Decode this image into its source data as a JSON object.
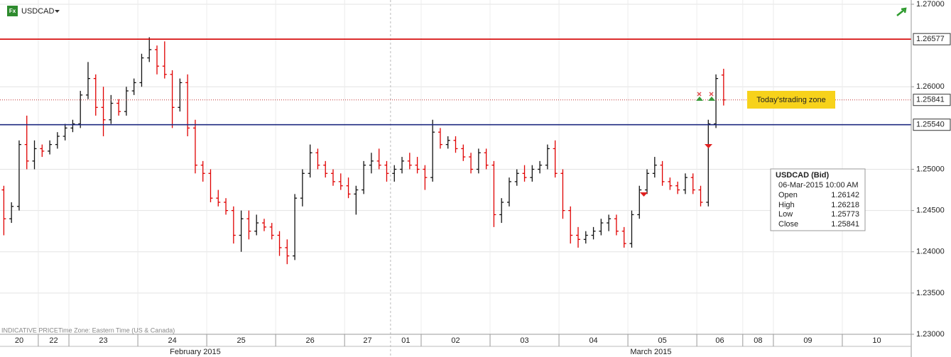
{
  "symbol": "USDCAD",
  "icon": "Fx",
  "chart_data": {
    "type": "ohlc",
    "categories": [
      "20",
      "20",
      "20",
      "20",
      "20",
      "22",
      "22",
      "22",
      "22",
      "23",
      "23",
      "23",
      "23",
      "23",
      "23",
      "23",
      "23",
      "23",
      "24",
      "24",
      "24",
      "24",
      "24",
      "24",
      "24",
      "24",
      "24",
      "25",
      "25",
      "25",
      "25",
      "25",
      "25",
      "25",
      "25",
      "25",
      "26",
      "26",
      "26",
      "26",
      "26",
      "26",
      "26",
      "26",
      "26",
      "27",
      "27",
      "27",
      "27",
      "27",
      "27",
      "01",
      "01",
      "01",
      "01",
      "02",
      "02",
      "02",
      "02",
      "02",
      "02",
      "02",
      "02",
      "02",
      "03",
      "03",
      "03",
      "03",
      "03",
      "03",
      "03",
      "03",
      "03",
      "04",
      "04",
      "04",
      "04",
      "04",
      "04",
      "04",
      "04",
      "04",
      "05",
      "05",
      "05",
      "05",
      "05",
      "05",
      "05",
      "05",
      "05",
      "06",
      "06",
      "06",
      "06",
      "06",
      "06",
      "08",
      "08",
      "08",
      "08",
      "09",
      "09",
      "09",
      "09",
      "09",
      "09",
      "09",
      "09",
      "09",
      "10",
      "10",
      "10",
      "10",
      "10",
      "10",
      "10",
      "10",
      "10"
    ],
    "months": [
      "February 2015",
      "March 2015"
    ],
    "open": [
      1.2475,
      1.244,
      1.2455,
      1.253,
      1.251,
      1.2525,
      1.2522,
      1.253,
      1.254,
      1.255,
      1.2555,
      1.259,
      1.261,
      1.2575,
      1.256,
      1.258,
      1.257,
      1.2595,
      1.2605,
      1.2635,
      1.2645,
      1.2625,
      1.2615,
      1.2575,
      1.2605,
      1.255,
      1.2505,
      1.2495,
      1.2465,
      1.246,
      1.245,
      1.242,
      1.244,
      1.2425,
      1.2435,
      1.243,
      1.242,
      1.2405,
      1.2395,
      1.2465,
      1.2495,
      1.252,
      1.2505,
      1.2495,
      1.2485,
      1.248,
      1.247,
      1.2475,
      1.2505,
      1.251,
      1.2505,
      1.2495,
      1.25,
      1.251,
      1.2505,
      1.25,
      1.249,
      1.2545,
      1.253,
      1.2535,
      1.2525,
      1.2515,
      1.25,
      1.252,
      1.2505,
      1.2445,
      1.246,
      1.2485,
      1.2495,
      1.249,
      1.25,
      1.2505,
      1.2525,
      1.2495,
      1.245,
      1.242,
      1.2415,
      1.242,
      1.2425,
      1.2435,
      1.244,
      1.2425,
      1.241,
      1.2445,
      1.2475,
      1.2495,
      1.2505,
      1.2485,
      1.248,
      1.2475,
      1.249,
      1.2475,
      1.246,
      1.2555,
      1.26142,
      null,
      null,
      null,
      null,
      null,
      null,
      null,
      null,
      null,
      null,
      null,
      null,
      null,
      null,
      null,
      null,
      null,
      null,
      null,
      null,
      null,
      null,
      null,
      null
    ],
    "high": [
      1.248,
      1.246,
      1.2535,
      1.2565,
      1.2535,
      1.253,
      1.2535,
      1.2545,
      1.2555,
      1.256,
      1.2595,
      1.263,
      1.2615,
      1.26,
      1.259,
      1.2585,
      1.26,
      1.261,
      1.264,
      1.266,
      1.265,
      1.2655,
      1.262,
      1.261,
      1.2615,
      1.256,
      1.251,
      1.25,
      1.2475,
      1.2465,
      1.2455,
      1.245,
      1.245,
      1.2445,
      1.244,
      1.2435,
      1.2425,
      1.2415,
      1.247,
      1.25,
      1.253,
      1.2525,
      1.251,
      1.25,
      1.2495,
      1.249,
      1.248,
      1.251,
      1.252,
      1.2525,
      1.251,
      1.2505,
      1.2515,
      1.252,
      1.2515,
      1.2505,
      1.256,
      1.255,
      1.254,
      1.254,
      1.253,
      1.252,
      1.2525,
      1.2525,
      1.251,
      1.2465,
      1.249,
      1.25,
      1.2505,
      1.2505,
      1.251,
      1.253,
      1.2535,
      1.25,
      1.2455,
      1.243,
      1.2425,
      1.243,
      1.244,
      1.2445,
      1.2445,
      1.243,
      1.245,
      1.248,
      1.25,
      1.2515,
      1.251,
      1.249,
      1.2485,
      1.2495,
      1.2495,
      1.248,
      1.256,
      1.2615,
      1.26218,
      null,
      null,
      null,
      null,
      null,
      null,
      null,
      null,
      null,
      null,
      null,
      null,
      null,
      null,
      null,
      null,
      null,
      null,
      null,
      null,
      null,
      null,
      null,
      null
    ],
    "low": [
      1.242,
      1.2435,
      1.245,
      1.25,
      1.25,
      1.2515,
      1.2518,
      1.2525,
      1.2535,
      1.2545,
      1.255,
      1.2585,
      1.2565,
      1.254,
      1.2555,
      1.2565,
      1.2565,
      1.259,
      1.26,
      1.263,
      1.2615,
      1.261,
      1.255,
      1.257,
      1.254,
      1.2495,
      1.2485,
      1.246,
      1.2455,
      1.2445,
      1.241,
      1.24,
      1.2415,
      1.242,
      1.2425,
      1.2415,
      1.2395,
      1.2385,
      1.239,
      1.2455,
      1.249,
      1.25,
      1.249,
      1.248,
      1.2475,
      1.2465,
      1.2445,
      1.247,
      1.2495,
      1.25,
      1.2485,
      1.2485,
      1.2495,
      1.25,
      1.2495,
      1.2475,
      1.2485,
      1.2525,
      1.2525,
      1.252,
      1.251,
      1.2495,
      1.2495,
      1.25,
      1.243,
      1.2435,
      1.2455,
      1.248,
      1.2485,
      1.2485,
      1.2495,
      1.25,
      1.249,
      1.244,
      1.241,
      1.2405,
      1.241,
      1.2415,
      1.242,
      1.2425,
      1.242,
      1.2405,
      1.2405,
      1.244,
      1.247,
      1.249,
      1.248,
      1.2475,
      1.247,
      1.247,
      1.247,
      1.2455,
      1.2455,
      1.255,
      1.25773,
      null,
      null,
      null,
      null,
      null,
      null,
      null,
      null,
      null,
      null,
      null,
      null,
      null,
      null,
      null,
      null,
      null,
      null,
      null,
      null,
      null,
      null,
      null,
      null
    ],
    "close": [
      1.244,
      1.2455,
      1.253,
      1.251,
      1.2525,
      1.2522,
      1.253,
      1.254,
      1.255,
      1.2555,
      1.259,
      1.261,
      1.2575,
      1.256,
      1.258,
      1.257,
      1.2595,
      1.2605,
      1.2635,
      1.2645,
      1.2625,
      1.2615,
      1.2575,
      1.2605,
      1.255,
      1.2505,
      1.2495,
      1.2465,
      1.246,
      1.245,
      1.242,
      1.244,
      1.2425,
      1.2435,
      1.243,
      1.242,
      1.2405,
      1.2395,
      1.2465,
      1.2495,
      1.252,
      1.2505,
      1.2495,
      1.2485,
      1.248,
      1.247,
      1.2475,
      1.2505,
      1.251,
      1.2505,
      1.2495,
      1.25,
      1.251,
      1.2505,
      1.25,
      1.249,
      1.2545,
      1.253,
      1.2535,
      1.2525,
      1.2515,
      1.25,
      1.252,
      1.2505,
      1.2445,
      1.246,
      1.2485,
      1.2495,
      1.249,
      1.25,
      1.2505,
      1.2525,
      1.2495,
      1.245,
      1.242,
      1.2415,
      1.242,
      1.2425,
      1.2435,
      1.244,
      1.2425,
      1.241,
      1.2445,
      1.2475,
      1.2495,
      1.2505,
      1.2485,
      1.248,
      1.2475,
      1.249,
      1.2475,
      1.246,
      1.2555,
      1.261,
      1.25841,
      null,
      null,
      null,
      null,
      null,
      null,
      null,
      null,
      null,
      null,
      null,
      null,
      null,
      null,
      null,
      null,
      null,
      null,
      null,
      null,
      null,
      null,
      null,
      null
    ],
    "up_color": "#111111",
    "down_color": "#e00000",
    "ylim": [
      1.23,
      1.27
    ],
    "yticks": [
      {
        "value": 1.23,
        "label": "1.23000"
      },
      {
        "value": 1.235,
        "label": "1.23500"
      },
      {
        "value": 1.24,
        "label": "1.24000"
      },
      {
        "value": 1.245,
        "label": "1.24500"
      },
      {
        "value": 1.25,
        "label": "1.25000"
      },
      {
        "value": 1.26,
        "label": "1.26000"
      },
      {
        "value": 1.27,
        "label": "1.27000"
      }
    ],
    "grid": true,
    "reference_lines": [
      {
        "value": 1.26577,
        "color": "#d40000",
        "style": "solid"
      },
      {
        "value": 1.25841,
        "color": "#c03030",
        "style": "dotted"
      },
      {
        "value": 1.2554,
        "label": "1.25540",
        "color": "#1f2a80",
        "style": "solid"
      }
    ],
    "annotation": "Today'strading zone",
    "tooltip": {
      "title": "USDCAD (Bid)",
      "date": "06-Mar-2015 10:00 AM",
      "labels": [
        "Open",
        "High",
        "Low",
        "Close"
      ]
    },
    "footer": "INDICATIVE PRICE",
    "timezone": "Time Zone: Eastern Time (US & Canada)"
  }
}
